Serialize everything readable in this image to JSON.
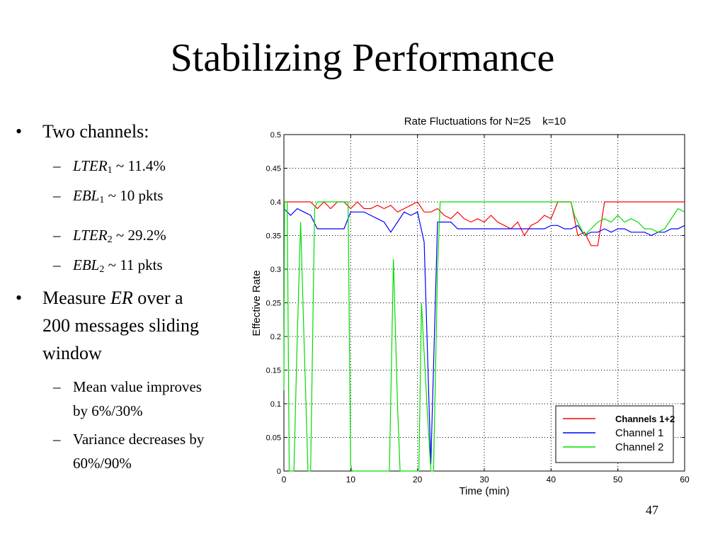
{
  "slide": {
    "title": "Stabilizing Performance",
    "page_number": "47",
    "bullets": {
      "b1": "Two channels:",
      "s1a": "LTER",
      "s1a_sub": "1",
      "s1a_rest": " ~ 11.4%",
      "s1b": "EBL",
      "s1b_sub": "1",
      "s1b_rest": " ~ 10 pkts",
      "s2a": "LTER",
      "s2a_sub": "2",
      "s2a_rest": " ~ 29.2%",
      "s2b": "EBL",
      "s2b_sub": "2",
      "s2b_rest": " ~ 11 pkts",
      "b2_pre": "Measure ",
      "b2_it": "ER",
      "b2_rest": " over a",
      "b2_line2": "200 messages sliding",
      "b2_line3": "window",
      "s3_line1": "Mean value improves",
      "s3_line2": "by 6%/30%",
      "s4_line1": "Variance decreases by",
      "s4_line2": "60%/90%"
    }
  },
  "chart_data": {
    "type": "line",
    "title": "Rate Fluctuations for N=25    k=10",
    "xlabel": "Time (min)",
    "ylabel": "Effective Rate",
    "xlim": [
      0,
      60
    ],
    "ylim": [
      0,
      0.5
    ],
    "x_ticks": [
      "0",
      "10",
      "20",
      "30",
      "40",
      "50",
      "60"
    ],
    "y_ticks": [
      "0",
      "0.05",
      "0.1",
      "0.15",
      "0.2",
      "0.25",
      "0.3",
      "0.35",
      "0.4",
      "0.45",
      "0.5"
    ],
    "grid": true,
    "legend_position": "bottom-right",
    "series": [
      {
        "name": "Channels 1+2",
        "color": "#ff0000",
        "x": [
          0,
          4,
          5,
          6,
          7,
          8,
          9,
          10,
          11,
          12,
          13,
          14,
          15,
          16,
          17,
          18,
          19,
          20,
          21,
          22,
          23,
          24,
          25,
          26,
          27,
          28,
          29,
          30,
          31,
          32,
          33,
          34,
          35,
          36,
          37,
          38,
          39,
          40,
          41,
          42,
          43,
          44,
          45,
          46,
          47,
          48,
          60
        ],
        "y": [
          0.4,
          0.4,
          0.39,
          0.4,
          0.39,
          0.4,
          0.4,
          0.39,
          0.4,
          0.39,
          0.39,
          0.395,
          0.39,
          0.395,
          0.385,
          0.39,
          0.395,
          0.4,
          0.385,
          0.385,
          0.39,
          0.38,
          0.375,
          0.385,
          0.375,
          0.37,
          0.375,
          0.37,
          0.38,
          0.37,
          0.365,
          0.36,
          0.37,
          0.35,
          0.365,
          0.37,
          0.38,
          0.375,
          0.4,
          0.4,
          0.4,
          0.35,
          0.355,
          0.335,
          0.335,
          0.4,
          0.4
        ]
      },
      {
        "name": "Channel 1",
        "color": "#0000ff",
        "x": [
          0,
          1,
          2,
          3,
          4,
          5,
          6,
          7,
          8,
          9,
          10,
          11,
          12,
          13,
          14,
          15,
          16,
          17,
          18,
          19,
          20,
          21,
          22,
          23,
          24,
          25,
          26,
          27,
          28,
          29,
          30,
          31,
          32,
          33,
          34,
          35,
          36,
          37,
          38,
          39,
          40,
          41,
          42,
          43,
          44,
          45,
          46,
          47,
          48,
          49,
          50,
          51,
          52,
          53,
          54,
          55,
          56,
          57,
          58,
          59,
          60
        ],
        "y": [
          0.39,
          0.38,
          0.39,
          0.385,
          0.38,
          0.36,
          0.36,
          0.36,
          0.36,
          0.36,
          0.385,
          0.385,
          0.385,
          0.38,
          0.375,
          0.37,
          0.355,
          0.37,
          0.385,
          0.38,
          0.385,
          0.34,
          0.01,
          0.37,
          0.37,
          0.37,
          0.36,
          0.36,
          0.36,
          0.36,
          0.36,
          0.36,
          0.36,
          0.36,
          0.36,
          0.36,
          0.36,
          0.36,
          0.36,
          0.36,
          0.365,
          0.365,
          0.36,
          0.36,
          0.365,
          0.35,
          0.355,
          0.355,
          0.36,
          0.355,
          0.36,
          0.36,
          0.355,
          0.355,
          0.355,
          0.35,
          0.355,
          0.355,
          0.36,
          0.36,
          0.365
        ]
      },
      {
        "name": "Channel 2",
        "color": "#00dd00",
        "x": [
          0,
          0.1,
          0.5,
          0.8,
          1.5,
          2,
          2.5,
          3,
          3.6,
          4,
          4.6,
          5,
          5.5,
          9.6,
          10,
          10.2,
          10.8,
          11,
          14.5,
          15.8,
          16.4,
          17,
          17.4,
          19.8,
          20.2,
          20.6,
          21.4,
          22,
          22.4,
          23,
          23.4,
          43,
          43.5,
          44,
          45,
          46,
          47,
          48,
          49,
          50,
          51,
          52,
          53,
          54,
          55,
          56,
          57,
          58,
          59,
          60
        ],
        "y": [
          0.12,
          0.4,
          0.4,
          0,
          0,
          0.2,
          0.37,
          0.2,
          0,
          0,
          0.39,
          0.4,
          0.4,
          0.4,
          0.01,
          0,
          0,
          0,
          0,
          0,
          0.315,
          0.1,
          0,
          0,
          0,
          0.25,
          0.1,
          0,
          0,
          0.3,
          0.4,
          0.4,
          0.38,
          0.37,
          0.35,
          0.36,
          0.37,
          0.375,
          0.37,
          0.38,
          0.37,
          0.375,
          0.37,
          0.36,
          0.36,
          0.355,
          0.36,
          0.375,
          0.39,
          0.385
        ]
      }
    ]
  }
}
